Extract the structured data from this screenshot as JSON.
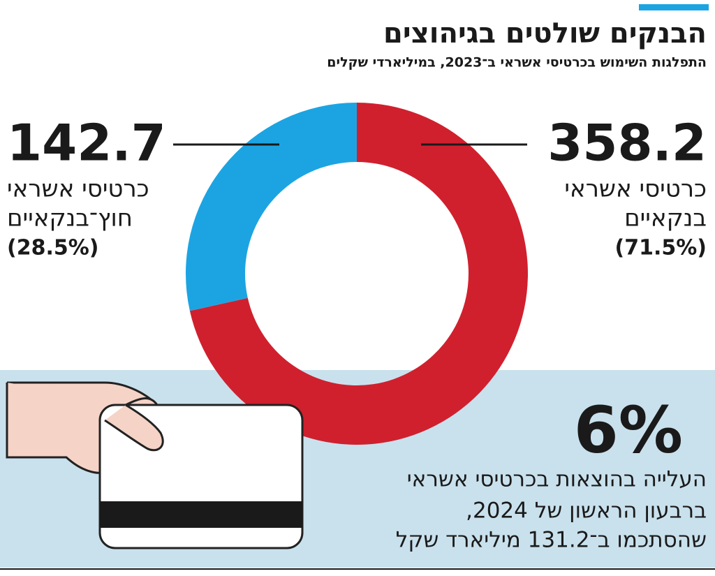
{
  "chart_data": {
    "type": "pie",
    "donut": true,
    "title": "הבנקים שולטים בגיהוצים",
    "subtitle": "התפלגות השימוש בכרטיסי אשראי ב־2023, במיליארדי שקלים",
    "categories": [
      [
        "כרטיסי אשראי",
        "בנקאיים"
      ],
      [
        "כרטיסי אשראי",
        "חוץ־בנקאיים"
      ]
    ],
    "values": [
      358.2,
      142.7
    ],
    "percentages": [
      71.5,
      28.5
    ],
    "percentage_labels": [
      "(71.5%)",
      "(28.5%)"
    ],
    "colors": [
      "#d0202e",
      "#1ca4e2"
    ],
    "annotation": {
      "value": 6,
      "label": "6%",
      "text": [
        "העלייה בהוצאות בכרטיסי אשראי",
        "ברבעון הראשון של 2024,",
        "שהסתכמו ב־131.2 מיליארד שקל"
      ]
    }
  }
}
